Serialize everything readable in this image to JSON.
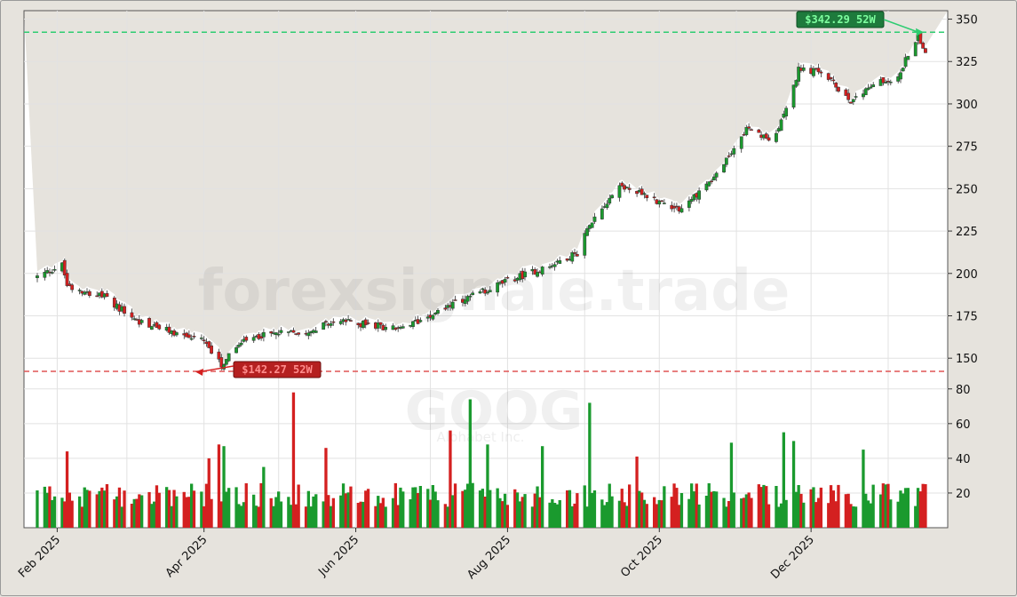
{
  "watermark": {
    "site": "forexsignale.trade",
    "ticker": "GOOG",
    "company": "Alphabet Inc."
  },
  "annotations": {
    "high_label": "$342.29 52W",
    "low_label": "$142.27 52W"
  },
  "colors": {
    "up": "#1a9a2e",
    "down": "#d42020",
    "high_line": "#2ecc71",
    "low_line": "#e05555",
    "high_tag_bg": "#1e7a3c",
    "high_tag_text": "#7fffa0",
    "low_tag_bg": "#b52020",
    "low_tag_text": "#ff8c8c"
  },
  "chart_data": {
    "type": "candlestick",
    "ticker": "GOOG",
    "price_axis": {
      "ticks": [
        150,
        175,
        200,
        225,
        250,
        275,
        300,
        325,
        350
      ],
      "range": [
        137,
        355
      ],
      "position": "right"
    },
    "volume_axis": {
      "ticks": [
        20,
        40,
        60,
        80
      ],
      "range": [
        0,
        85
      ],
      "position": "right"
    },
    "date_axis": {
      "range": [
        "2025-01-24",
        "2026-01-16"
      ],
      "labels": [
        {
          "text": "Feb 2025",
          "date": "2025-02-01"
        },
        {
          "text": "Apr 2025",
          "date": "2025-04-01"
        },
        {
          "text": "Jun 2025",
          "date": "2025-06-01"
        },
        {
          "text": "Aug 2025",
          "date": "2025-08-01"
        },
        {
          "text": "Oct 2025",
          "date": "2025-10-01"
        },
        {
          "text": "Dec 2025",
          "date": "2025-12-01"
        }
      ]
    },
    "week52_high": 342.29,
    "week52_low": 142.27,
    "grid": true,
    "close_anchors": [
      {
        "date": "2025-01-24",
        "close": 198
      },
      {
        "date": "2025-02-03",
        "close": 205
      },
      {
        "date": "2025-02-05",
        "close": 193
      },
      {
        "date": "2025-02-20",
        "close": 186
      },
      {
        "date": "2025-03-05",
        "close": 172
      },
      {
        "date": "2025-03-20",
        "close": 165
      },
      {
        "date": "2025-04-01",
        "close": 160
      },
      {
        "date": "2025-04-08",
        "close": 146
      },
      {
        "date": "2025-04-15",
        "close": 158
      },
      {
        "date": "2025-04-25",
        "close": 164
      },
      {
        "date": "2025-05-10",
        "close": 165
      },
      {
        "date": "2025-05-25",
        "close": 172
      },
      {
        "date": "2025-06-05",
        "close": 170
      },
      {
        "date": "2025-06-20",
        "close": 167
      },
      {
        "date": "2025-07-01",
        "close": 176
      },
      {
        "date": "2025-07-15",
        "close": 185
      },
      {
        "date": "2025-07-31",
        "close": 195
      },
      {
        "date": "2025-08-15",
        "close": 203
      },
      {
        "date": "2025-08-29",
        "close": 212
      },
      {
        "date": "2025-09-03",
        "close": 230
      },
      {
        "date": "2025-09-15",
        "close": 252
      },
      {
        "date": "2025-09-30",
        "close": 243
      },
      {
        "date": "2025-10-10",
        "close": 238
      },
      {
        "date": "2025-10-25",
        "close": 260
      },
      {
        "date": "2025-11-05",
        "close": 285
      },
      {
        "date": "2025-11-15",
        "close": 278
      },
      {
        "date": "2025-11-22",
        "close": 300
      },
      {
        "date": "2025-11-26",
        "close": 320
      },
      {
        "date": "2025-12-05",
        "close": 319
      },
      {
        "date": "2025-12-17",
        "close": 302
      },
      {
        "date": "2025-12-28",
        "close": 313
      },
      {
        "date": "2026-01-05",
        "close": 315
      },
      {
        "date": "2026-01-10",
        "close": 333
      },
      {
        "date": "2026-01-13",
        "close": 340
      },
      {
        "date": "2026-01-16",
        "close": 332
      }
    ],
    "volume_spikes": [
      {
        "date": "2025-02-05",
        "value": 44
      },
      {
        "date": "2025-04-03",
        "value": 40
      },
      {
        "date": "2025-04-07",
        "value": 48
      },
      {
        "date": "2025-04-09",
        "value": 47
      },
      {
        "date": "2025-04-25",
        "value": 35
      },
      {
        "date": "2025-05-07",
        "value": 78
      },
      {
        "date": "2025-05-20",
        "value": 46
      },
      {
        "date": "2025-07-09",
        "value": 56
      },
      {
        "date": "2025-07-17",
        "value": 74
      },
      {
        "date": "2025-07-24",
        "value": 48
      },
      {
        "date": "2025-08-15",
        "value": 47
      },
      {
        "date": "2025-09-03",
        "value": 72
      },
      {
        "date": "2025-09-22",
        "value": 41
      },
      {
        "date": "2025-10-30",
        "value": 49
      },
      {
        "date": "2025-11-20",
        "value": 55
      },
      {
        "date": "2025-11-24",
        "value": 50
      },
      {
        "date": "2025-12-22",
        "value": 45
      }
    ],
    "volume_base": 20
  }
}
